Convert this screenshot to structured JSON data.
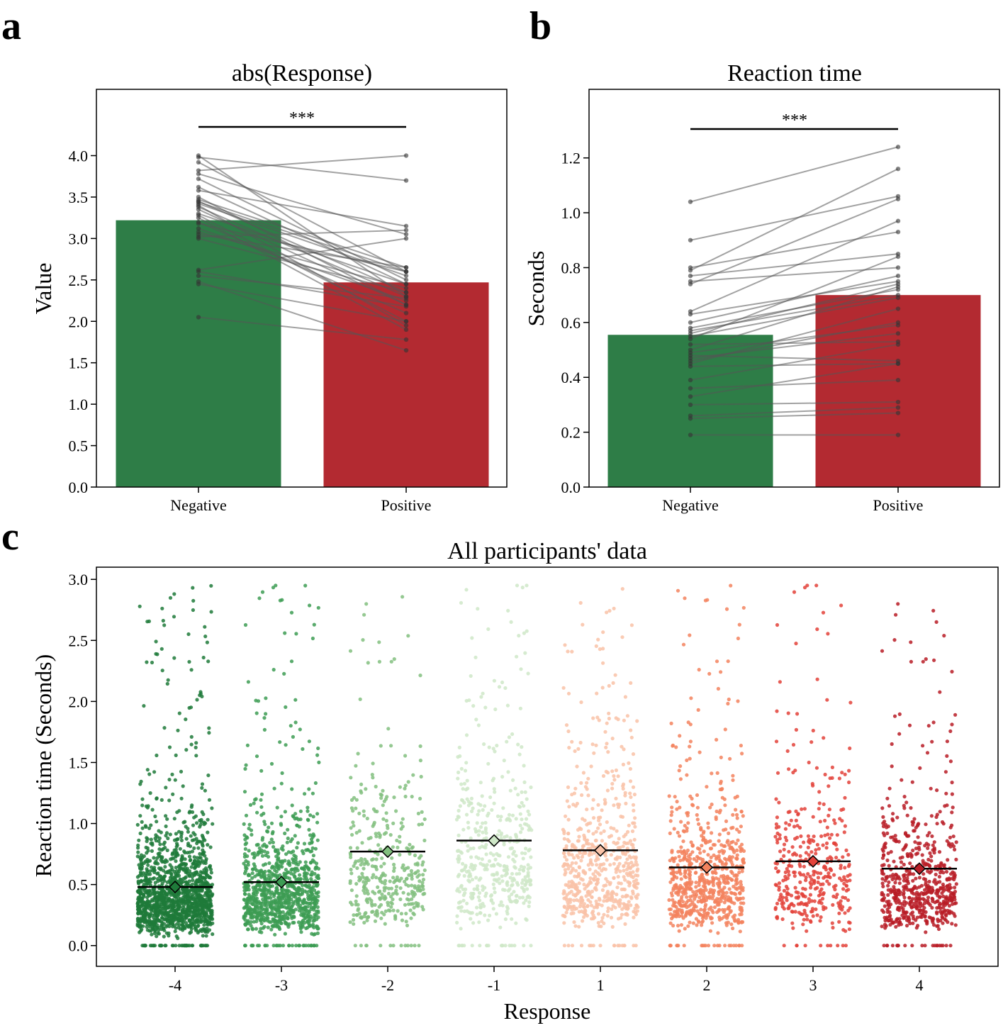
{
  "panels": {
    "a": "a",
    "b": "b",
    "c": "c"
  },
  "colors": {
    "negative_bar": "#2e7d47",
    "positive_bar": "#b32a31",
    "pair_line": "#555555",
    "response_colors": [
      "#1f7a3a",
      "#3d9c54",
      "#82c07f",
      "#cfe8c8",
      "#f9c2a7",
      "#f3835e",
      "#e3423a",
      "#b81c26"
    ]
  },
  "chart_data": [
    {
      "type": "bar",
      "title": "abs(Response)",
      "xlabel": "",
      "ylabel": "Value",
      "categories": [
        "Negative",
        "Positive"
      ],
      "values": [
        3.22,
        2.47
      ],
      "ylim": [
        0,
        4.8
      ],
      "yticks": [
        "0.0",
        "0.5",
        "1.0",
        "1.5",
        "2.0",
        "2.5",
        "3.0",
        "3.5",
        "4.0"
      ],
      "significance": "***",
      "paired": [
        [
          4.0,
          2.3
        ],
        [
          3.98,
          3.7
        ],
        [
          3.92,
          2.6
        ],
        [
          3.82,
          4.0
        ],
        [
          3.78,
          3.05
        ],
        [
          3.72,
          2.5
        ],
        [
          3.62,
          2.45
        ],
        [
          3.58,
          3.15
        ],
        [
          3.5,
          2.2
        ],
        [
          3.47,
          2.65
        ],
        [
          3.45,
          2.35
        ],
        [
          3.44,
          2.6
        ],
        [
          3.42,
          2.55
        ],
        [
          3.4,
          1.95
        ],
        [
          3.38,
          2.3
        ],
        [
          3.35,
          2.2
        ],
        [
          3.3,
          2.45
        ],
        [
          3.28,
          2.0
        ],
        [
          3.25,
          1.9
        ],
        [
          3.2,
          2.1
        ],
        [
          3.18,
          2.6
        ],
        [
          3.12,
          2.25
        ],
        [
          3.08,
          2.4
        ],
        [
          3.05,
          2.65
        ],
        [
          3.02,
          3.1
        ],
        [
          3.0,
          2.35
        ],
        [
          2.62,
          3.0
        ],
        [
          2.6,
          2.18
        ],
        [
          2.55,
          2.28
        ],
        [
          2.48,
          1.65
        ],
        [
          2.45,
          2.0
        ],
        [
          2.05,
          1.78
        ]
      ]
    },
    {
      "type": "bar",
      "title": "Reaction time",
      "xlabel": "",
      "ylabel": "Seconds",
      "categories": [
        "Negative",
        "Positive"
      ],
      "values": [
        0.555,
        0.7
      ],
      "ylim": [
        0,
        1.45
      ],
      "yticks": [
        "0.0",
        "0.2",
        "0.4",
        "0.6",
        "0.8",
        "1.0",
        "1.2"
      ],
      "significance": "***",
      "paired": [
        [
          1.04,
          1.24
        ],
        [
          0.9,
          1.06
        ],
        [
          0.8,
          0.93
        ],
        [
          0.79,
          1.16
        ],
        [
          0.77,
          0.85
        ],
        [
          0.75,
          0.8
        ],
        [
          0.74,
          1.05
        ],
        [
          0.64,
          0.97
        ],
        [
          0.63,
          0.75
        ],
        [
          0.6,
          0.77
        ],
        [
          0.58,
          0.72
        ],
        [
          0.57,
          0.7
        ],
        [
          0.56,
          0.74
        ],
        [
          0.55,
          0.69
        ],
        [
          0.54,
          0.84
        ],
        [
          0.52,
          0.53
        ],
        [
          0.5,
          0.73
        ],
        [
          0.49,
          0.59
        ],
        [
          0.48,
          0.46
        ],
        [
          0.47,
          0.56
        ],
        [
          0.46,
          0.6
        ],
        [
          0.45,
          0.65
        ],
        [
          0.44,
          0.45
        ],
        [
          0.39,
          0.52
        ],
        [
          0.36,
          0.39
        ],
        [
          0.33,
          0.45
        ],
        [
          0.3,
          0.31
        ],
        [
          0.26,
          0.29
        ],
        [
          0.25,
          0.27
        ],
        [
          0.19,
          0.19
        ]
      ]
    },
    {
      "type": "scatter",
      "title": "All participants' data",
      "xlabel": "Response",
      "ylabel": "Reaction time (Seconds)",
      "categories": [
        "-4",
        "-3",
        "-2",
        "-1",
        "1",
        "2",
        "3",
        "4"
      ],
      "means": [
        0.48,
        0.52,
        0.77,
        0.86,
        0.78,
        0.64,
        0.69,
        0.63
      ],
      "point_counts": [
        1500,
        1000,
        380,
        460,
        620,
        720,
        380,
        620
      ],
      "ylim": [
        -0.17,
        3.1
      ],
      "yticks": [
        "0.0",
        "0.5",
        "1.0",
        "1.5",
        "2.0",
        "2.5",
        "3.0"
      ]
    }
  ]
}
